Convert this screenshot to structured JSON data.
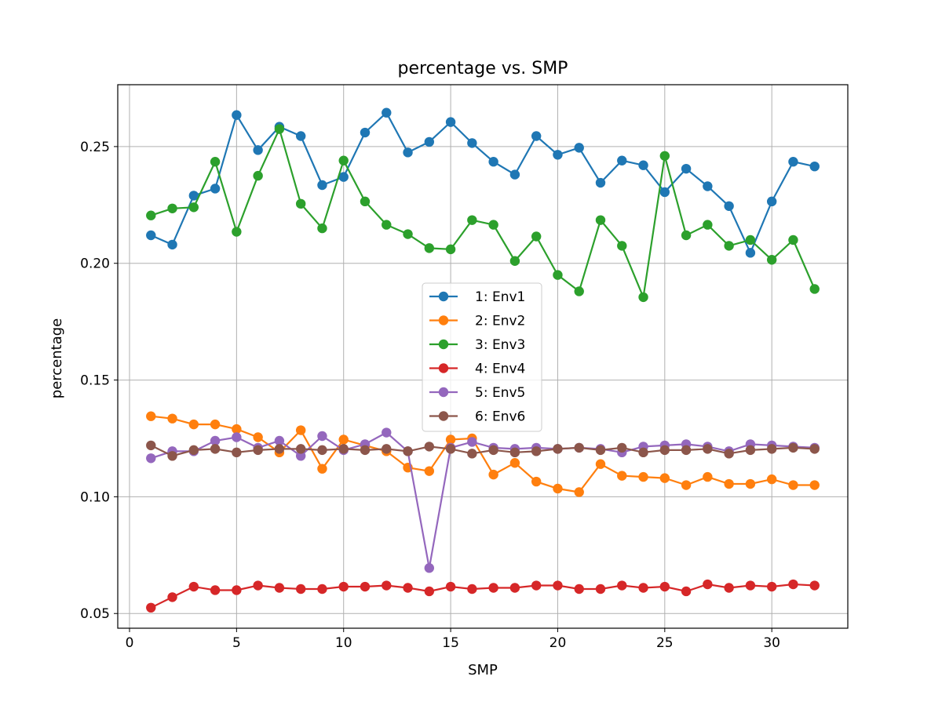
{
  "chart_data": {
    "type": "line",
    "title": "percentage vs. SMP",
    "xlabel": "SMP",
    "ylabel": "percentage",
    "xlim": [
      -0.55,
      33.55
    ],
    "ylim": [
      0.0437,
      0.2765
    ],
    "xticks": [
      0,
      5,
      10,
      15,
      20,
      25,
      30
    ],
    "yticks": [
      0.05,
      0.1,
      0.15,
      0.2,
      0.25
    ],
    "xtick_labels": [
      "0",
      "5",
      "10",
      "15",
      "20",
      "25",
      "30"
    ],
    "ytick_labels": [
      "0.05",
      "0.10",
      "0.15",
      "0.20",
      "0.25"
    ],
    "grid": true,
    "legend_position": "center",
    "x": [
      1,
      2,
      3,
      4,
      5,
      6,
      7,
      8,
      9,
      10,
      11,
      12,
      13,
      14,
      15,
      16,
      17,
      18,
      19,
      20,
      21,
      22,
      23,
      24,
      25,
      26,
      27,
      28,
      29,
      30,
      31,
      32
    ],
    "series": [
      {
        "name": "1: Env1",
        "color": "#1f77b4",
        "values": [
          0.212,
          0.208,
          0.229,
          0.232,
          0.2635,
          0.2485,
          0.2585,
          0.2545,
          0.2335,
          0.237,
          0.256,
          0.2645,
          0.2475,
          0.252,
          0.2605,
          0.2515,
          0.2435,
          0.238,
          0.2545,
          0.2465,
          0.2495,
          0.2345,
          0.244,
          0.242,
          0.2305,
          0.2405,
          0.233,
          0.2245,
          0.2045,
          0.2265,
          0.2435,
          0.2415
        ]
      },
      {
        "name": "2: Env2",
        "color": "#ff7f0e",
        "values": [
          0.1345,
          0.1335,
          0.131,
          0.131,
          0.129,
          0.1255,
          0.119,
          0.1285,
          0.112,
          0.1245,
          0.122,
          0.1195,
          0.1125,
          0.111,
          0.1245,
          0.125,
          0.1095,
          0.1145,
          0.1065,
          0.1035,
          0.102,
          0.114,
          0.109,
          0.1085,
          0.108,
          0.105,
          0.1085,
          0.1055,
          0.1055,
          0.1075,
          0.105,
          0.105
        ]
      },
      {
        "name": "3: Env3",
        "color": "#2ca02c",
        "values": [
          0.2205,
          0.2235,
          0.224,
          0.2435,
          0.2135,
          0.2375,
          0.2575,
          0.2255,
          0.215,
          0.244,
          0.2265,
          0.2165,
          0.2125,
          0.2065,
          0.206,
          0.2185,
          0.2165,
          0.201,
          0.2115,
          0.195,
          0.188,
          0.2185,
          0.2075,
          0.1855,
          0.246,
          0.212,
          0.2165,
          0.2075,
          0.21,
          0.2015,
          0.21,
          0.189
        ]
      },
      {
        "name": "4: Env4",
        "color": "#d62728",
        "values": [
          0.0525,
          0.057,
          0.0615,
          0.06,
          0.06,
          0.062,
          0.061,
          0.0605,
          0.0605,
          0.0615,
          0.0615,
          0.062,
          0.061,
          0.0595,
          0.0615,
          0.0605,
          0.061,
          0.061,
          0.062,
          0.062,
          0.0605,
          0.0605,
          0.062,
          0.061,
          0.0615,
          0.0595,
          0.0625,
          0.061,
          0.062,
          0.0615,
          0.0625,
          0.062
        ]
      },
      {
        "name": "5: Env5",
        "color": "#9467bd",
        "values": [
          0.1165,
          0.1195,
          0.1195,
          0.124,
          0.1255,
          0.121,
          0.124,
          0.1175,
          0.126,
          0.12,
          0.1225,
          0.1275,
          0.1195,
          0.0695,
          0.121,
          0.1235,
          0.121,
          0.1205,
          0.121,
          0.1205,
          0.121,
          0.1205,
          0.119,
          0.1215,
          0.122,
          0.1225,
          0.1215,
          0.1195,
          0.1225,
          0.122,
          0.1215,
          0.121
        ]
      },
      {
        "name": "6: Env6",
        "color": "#8c564b",
        "values": [
          0.122,
          0.1175,
          0.12,
          0.1205,
          0.119,
          0.12,
          0.1205,
          0.1205,
          0.12,
          0.1205,
          0.12,
          0.1205,
          0.1195,
          0.1215,
          0.1205,
          0.1185,
          0.12,
          0.119,
          0.1195,
          0.1205,
          0.121,
          0.12,
          0.121,
          0.119,
          0.12,
          0.12,
          0.1205,
          0.1185,
          0.12,
          0.1205,
          0.121,
          0.1205
        ]
      }
    ]
  }
}
